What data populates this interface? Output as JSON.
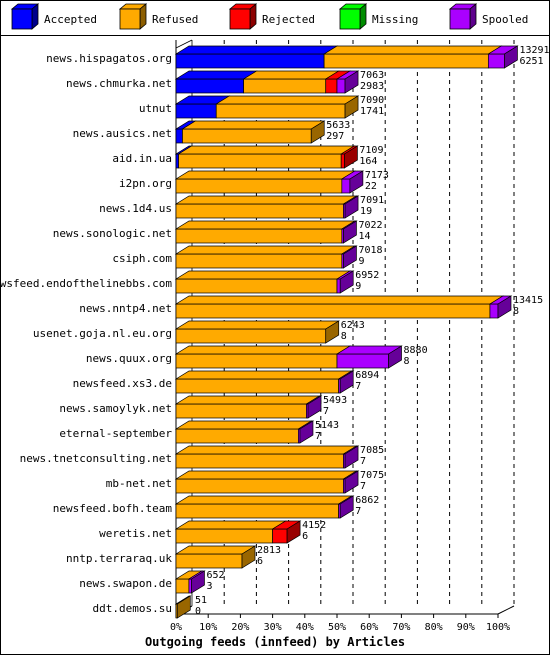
{
  "chart_data": {
    "type": "bar",
    "orientation": "horizontal",
    "stacked": true,
    "title": "Outgoing feeds (innfeed) by Articles",
    "xlabel": "",
    "ylabel": "",
    "xlim": [
      0,
      100
    ],
    "x_ticks": [
      "0%",
      "10%",
      "20%",
      "30%",
      "40%",
      "50%",
      "60%",
      "70%",
      "80%",
      "90%",
      "100%"
    ],
    "grid": "vertical dashed",
    "legend_position": "top",
    "series": [
      {
        "name": "Accepted",
        "color": "#0000ff"
      },
      {
        "name": "Refused",
        "color": "#ffaa00"
      },
      {
        "name": "Rejected",
        "color": "#ff0000"
      },
      {
        "name": "Missing",
        "color": "#00ff00"
      },
      {
        "name": "Spooled",
        "color": "#aa00ff"
      }
    ],
    "rows": [
      {
        "name": "news.hispagatos.org",
        "offered": "13291",
        "second": "6251",
        "percents": [
          46.0,
          51.0,
          0,
          0,
          5.0
        ]
      },
      {
        "name": "news.chmurka.net",
        "offered": "7063",
        "second": "2983",
        "percents": [
          21.0,
          25.5,
          3.5,
          0,
          2.5
        ]
      },
      {
        "name": "utnut",
        "offered": "7090",
        "second": "1741",
        "percents": [
          12.5,
          40.0,
          0,
          0,
          0
        ]
      },
      {
        "name": "news.ausics.net",
        "offered": "5633",
        "second": "297",
        "percents": [
          2.0,
          40.0,
          0,
          0,
          0
        ]
      },
      {
        "name": "aid.in.ua",
        "offered": "7109",
        "second": "164",
        "percents": [
          0.8,
          50.5,
          1.0,
          0,
          0
        ]
      },
      {
        "name": "i2pn.org",
        "offered": "7173",
        "second": "22",
        "percents": [
          0,
          51.5,
          0,
          0,
          2.5
        ]
      },
      {
        "name": "news.1d4.us",
        "offered": "7091",
        "second": "19",
        "percents": [
          0,
          52.0,
          0,
          0,
          0.5
        ]
      },
      {
        "name": "news.sonologic.net",
        "offered": "7022",
        "second": "14",
        "percents": [
          0,
          51.5,
          0,
          0,
          0.5
        ]
      },
      {
        "name": "csiph.com",
        "offered": "7018",
        "second": "9",
        "percents": [
          0,
          51.5,
          0,
          0,
          0.5
        ]
      },
      {
        "name": "newsfeed.endofthelinebbs.com",
        "offered": "6952",
        "second": "9",
        "percents": [
          0,
          50.0,
          0,
          0,
          1.0
        ]
      },
      {
        "name": "news.nntp4.net",
        "offered": "13415",
        "second": "8",
        "percents": [
          0,
          97.5,
          0,
          0,
          2.5
        ]
      },
      {
        "name": "usenet.goja.nl.eu.org",
        "offered": "6243",
        "second": "8",
        "percents": [
          0,
          46.5,
          0,
          0,
          0
        ]
      },
      {
        "name": "news.quux.org",
        "offered": "8880",
        "second": "8",
        "percents": [
          0,
          50.0,
          0,
          0,
          16.0
        ]
      },
      {
        "name": "newsfeed.xs3.de",
        "offered": "6894",
        "second": "7",
        "percents": [
          0,
          50.5,
          0,
          0,
          0.5
        ]
      },
      {
        "name": "news.samoylyk.net",
        "offered": "5493",
        "second": "7",
        "percents": [
          0,
          40.5,
          0,
          0,
          0.5
        ]
      },
      {
        "name": "eternal-september",
        "offered": "5143",
        "second": "7",
        "percents": [
          0,
          38.0,
          0,
          0,
          0.5
        ]
      },
      {
        "name": "news.tnetconsulting.net",
        "offered": "7085",
        "second": "7",
        "percents": [
          0,
          52.0,
          0,
          0,
          0.5
        ]
      },
      {
        "name": "mb-net.net",
        "offered": "7075",
        "second": "7",
        "percents": [
          0,
          52.0,
          0,
          0,
          0.5
        ]
      },
      {
        "name": "newsfeed.bofh.team",
        "offered": "6862",
        "second": "7",
        "percents": [
          0,
          50.5,
          0,
          0,
          0.5
        ]
      },
      {
        "name": "weretis.net",
        "offered": "4152",
        "second": "6",
        "percents": [
          0,
          30.0,
          4.5,
          0,
          0
        ]
      },
      {
        "name": "nntp.terraraq.uk",
        "offered": "2813",
        "second": "6",
        "percents": [
          0,
          20.5,
          0,
          0,
          0
        ]
      },
      {
        "name": "news.swapon.de",
        "offered": "652",
        "second": "3",
        "percents": [
          0,
          4.0,
          0,
          0,
          0.8
        ]
      },
      {
        "name": "ddt.demos.su",
        "offered": "51",
        "second": "0",
        "percents": [
          0,
          0.4,
          0,
          0,
          0
        ]
      }
    ]
  }
}
